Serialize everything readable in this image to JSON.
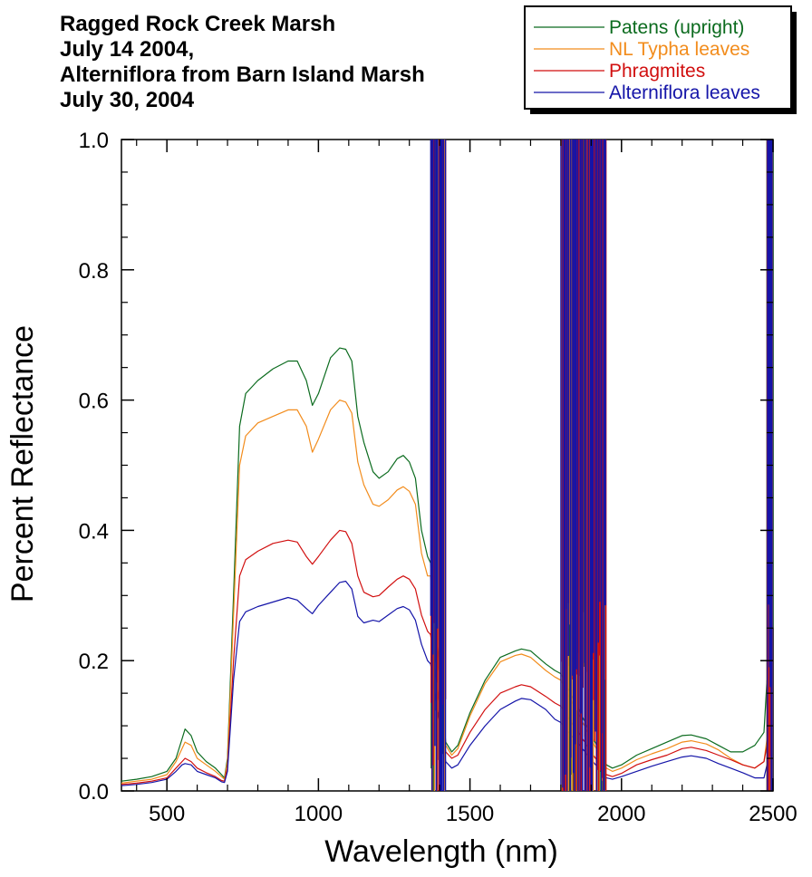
{
  "chart_data": {
    "type": "line",
    "title": [
      "Ragged Rock Creek Marsh",
      "July 14 2004,",
      "Alterniflora from Barn Island Marsh",
      "July 30, 2004"
    ],
    "xlabel": "Wavelength (nm)",
    "ylabel": "Percent Reflectance",
    "xlim": [
      350,
      2500
    ],
    "ylim": [
      0,
      1.0
    ],
    "xticks": [
      500,
      1000,
      1500,
      2000,
      2500
    ],
    "xtick_labels": [
      "500",
      "1000",
      "1500",
      "2000",
      "2500"
    ],
    "yticks": [
      0,
      0.2,
      0.4,
      0.6,
      0.8,
      1.0
    ],
    "ytick_labels": [
      "0.0",
      "0.2",
      "0.4",
      "0.6",
      "0.8",
      "1.0"
    ],
    "grid": false,
    "legend_position": "top-right",
    "noise_bands": [
      [
        1370,
        1420
      ],
      [
        1800,
        1950
      ],
      [
        2480,
        2500
      ]
    ],
    "series": [
      {
        "name": "Patens (upright)",
        "color": "#0b6b1e",
        "x": [
          350,
          400,
          450,
          500,
          530,
          550,
          560,
          580,
          600,
          630,
          660,
          680,
          690,
          700,
          720,
          740,
          760,
          800,
          850,
          900,
          930,
          960,
          980,
          1000,
          1040,
          1070,
          1090,
          1110,
          1130,
          1150,
          1180,
          1200,
          1230,
          1260,
          1280,
          1300,
          1320,
          1340,
          1360,
          1370,
          1420,
          1440,
          1460,
          1500,
          1550,
          1600,
          1650,
          1670,
          1700,
          1750,
          1780,
          1800,
          1950,
          1970,
          2000,
          2050,
          2100,
          2150,
          2200,
          2230,
          2280,
          2320,
          2360,
          2400,
          2440,
          2470,
          2480
        ],
        "y": [
          0.015,
          0.018,
          0.022,
          0.03,
          0.05,
          0.08,
          0.095,
          0.085,
          0.06,
          0.045,
          0.035,
          0.025,
          0.02,
          0.05,
          0.3,
          0.56,
          0.61,
          0.63,
          0.648,
          0.66,
          0.66,
          0.63,
          0.592,
          0.61,
          0.665,
          0.68,
          0.678,
          0.66,
          0.575,
          0.535,
          0.49,
          0.48,
          0.49,
          0.51,
          0.515,
          0.505,
          0.48,
          0.4,
          0.36,
          0.35,
          0.075,
          0.06,
          0.07,
          0.12,
          0.17,
          0.205,
          0.215,
          0.218,
          0.215,
          0.195,
          0.185,
          0.18,
          0.04,
          0.035,
          0.04,
          0.055,
          0.065,
          0.075,
          0.085,
          0.086,
          0.08,
          0.07,
          0.06,
          0.06,
          0.07,
          0.09,
          0.17
        ]
      },
      {
        "name": "NL Typha leaves",
        "color": "#f28c1c",
        "x": [
          350,
          400,
          450,
          500,
          530,
          550,
          560,
          580,
          600,
          630,
          660,
          680,
          690,
          700,
          720,
          740,
          760,
          800,
          850,
          900,
          930,
          960,
          980,
          1000,
          1040,
          1070,
          1090,
          1110,
          1130,
          1150,
          1180,
          1200,
          1230,
          1260,
          1280,
          1300,
          1320,
          1340,
          1360,
          1370,
          1420,
          1440,
          1460,
          1500,
          1550,
          1600,
          1650,
          1670,
          1700,
          1750,
          1780,
          1800,
          1950,
          1970,
          2000,
          2050,
          2100,
          2150,
          2200,
          2230,
          2280,
          2320,
          2360,
          2400,
          2440,
          2470,
          2480
        ],
        "y": [
          0.012,
          0.015,
          0.018,
          0.025,
          0.045,
          0.065,
          0.075,
          0.07,
          0.05,
          0.04,
          0.03,
          0.022,
          0.018,
          0.045,
          0.27,
          0.5,
          0.545,
          0.565,
          0.575,
          0.585,
          0.585,
          0.56,
          0.52,
          0.54,
          0.585,
          0.6,
          0.597,
          0.58,
          0.505,
          0.47,
          0.44,
          0.437,
          0.447,
          0.462,
          0.467,
          0.46,
          0.44,
          0.365,
          0.33,
          0.33,
          0.07,
          0.055,
          0.065,
          0.115,
          0.165,
          0.198,
          0.208,
          0.21,
          0.205,
          0.185,
          0.175,
          0.17,
          0.035,
          0.03,
          0.035,
          0.048,
          0.057,
          0.065,
          0.075,
          0.077,
          0.072,
          0.063,
          0.05,
          0.04,
          0.035,
          0.045,
          0.08
        ]
      },
      {
        "name": "Phragmites",
        "color": "#d10f0f",
        "x": [
          350,
          400,
          450,
          500,
          530,
          550,
          560,
          580,
          600,
          630,
          660,
          680,
          690,
          700,
          720,
          740,
          760,
          800,
          850,
          900,
          930,
          960,
          980,
          1000,
          1040,
          1070,
          1090,
          1110,
          1130,
          1150,
          1180,
          1200,
          1230,
          1260,
          1280,
          1300,
          1320,
          1340,
          1360,
          1370,
          1420,
          1440,
          1460,
          1500,
          1550,
          1600,
          1650,
          1670,
          1700,
          1750,
          1780,
          1800,
          1950,
          1970,
          2000,
          2050,
          2100,
          2150,
          2200,
          2230,
          2280,
          2320,
          2360,
          2400,
          2440,
          2470,
          2480
        ],
        "y": [
          0.01,
          0.012,
          0.015,
          0.02,
          0.035,
          0.045,
          0.05,
          0.045,
          0.035,
          0.028,
          0.022,
          0.016,
          0.015,
          0.035,
          0.2,
          0.33,
          0.355,
          0.368,
          0.38,
          0.385,
          0.382,
          0.36,
          0.348,
          0.36,
          0.385,
          0.4,
          0.398,
          0.38,
          0.33,
          0.305,
          0.298,
          0.3,
          0.313,
          0.325,
          0.33,
          0.325,
          0.31,
          0.27,
          0.245,
          0.24,
          0.06,
          0.05,
          0.055,
          0.09,
          0.125,
          0.15,
          0.16,
          0.163,
          0.16,
          0.145,
          0.135,
          0.13,
          0.025,
          0.022,
          0.027,
          0.04,
          0.048,
          0.055,
          0.065,
          0.067,
          0.062,
          0.055,
          0.048,
          0.04,
          0.035,
          0.045,
          0.07
        ]
      },
      {
        "name": "Alterniflora leaves",
        "color": "#1414a8",
        "x": [
          350,
          400,
          450,
          500,
          530,
          550,
          560,
          580,
          600,
          630,
          660,
          680,
          690,
          700,
          720,
          740,
          760,
          800,
          850,
          900,
          930,
          960,
          980,
          1000,
          1040,
          1070,
          1090,
          1110,
          1130,
          1150,
          1180,
          1200,
          1230,
          1260,
          1280,
          1300,
          1320,
          1340,
          1360,
          1370,
          1420,
          1440,
          1460,
          1500,
          1550,
          1600,
          1650,
          1670,
          1700,
          1750,
          1780,
          1800,
          1950,
          1970,
          2000,
          2050,
          2100,
          2150,
          2200,
          2230,
          2280,
          2320,
          2360,
          2400,
          2440,
          2470,
          2480
        ],
        "y": [
          0.008,
          0.01,
          0.013,
          0.018,
          0.03,
          0.04,
          0.042,
          0.04,
          0.03,
          0.025,
          0.02,
          0.014,
          0.013,
          0.03,
          0.17,
          0.26,
          0.275,
          0.283,
          0.29,
          0.297,
          0.293,
          0.28,
          0.272,
          0.285,
          0.305,
          0.32,
          0.322,
          0.31,
          0.268,
          0.258,
          0.262,
          0.26,
          0.27,
          0.28,
          0.283,
          0.278,
          0.262,
          0.225,
          0.2,
          0.195,
          0.045,
          0.035,
          0.04,
          0.07,
          0.1,
          0.125,
          0.138,
          0.142,
          0.14,
          0.125,
          0.11,
          0.105,
          0.02,
          0.018,
          0.022,
          0.03,
          0.038,
          0.045,
          0.052,
          0.054,
          0.05,
          0.042,
          0.035,
          0.028,
          0.02,
          0.02,
          0.04
        ]
      }
    ]
  }
}
